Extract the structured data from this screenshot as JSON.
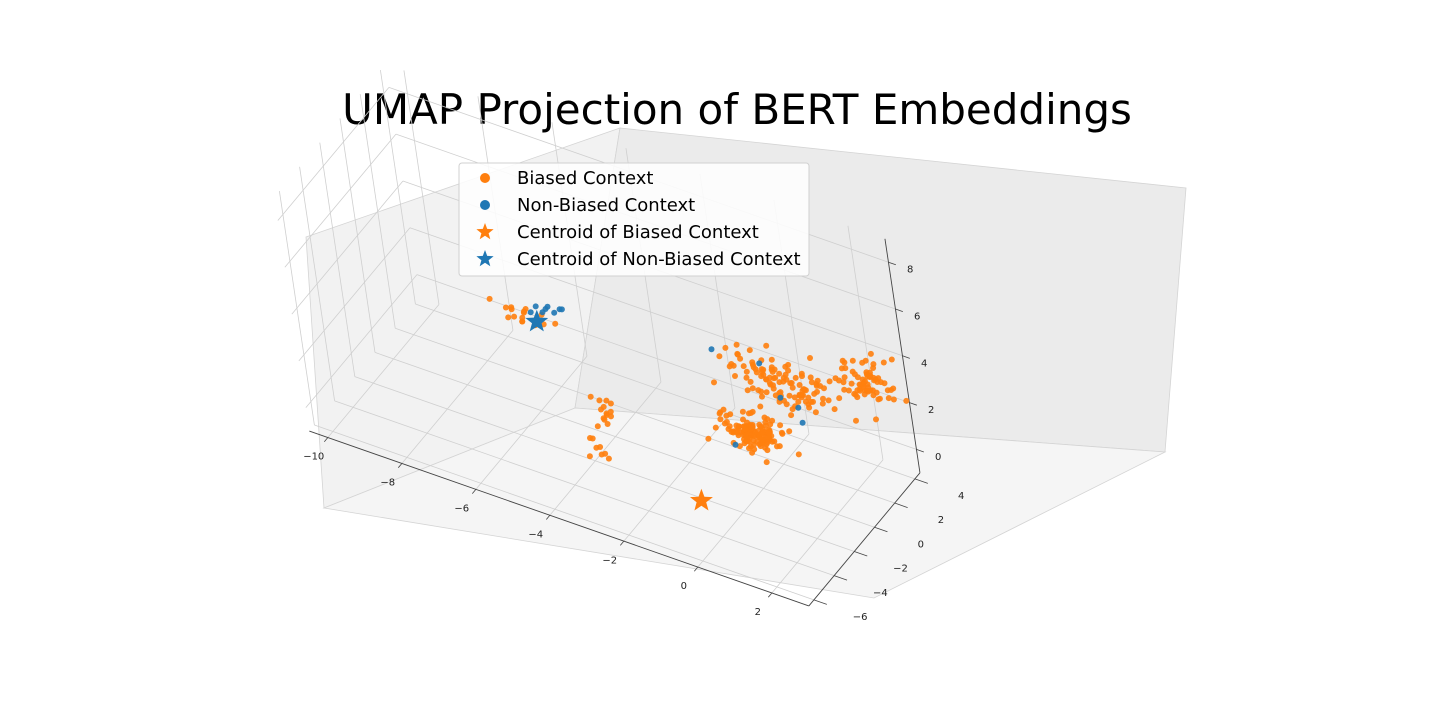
{
  "chart_data": {
    "type": "scatter",
    "projection": "3d",
    "title": "UMAP Projection of BERT Embeddings",
    "xlabel": "",
    "ylabel": "",
    "zlabel": "",
    "xlim": [
      -10.5,
      3
    ],
    "ylim": [
      -6.5,
      4.5
    ],
    "zlim": [
      -1,
      9
    ],
    "x_ticks": [
      "−10",
      "−8",
      "−6",
      "−4",
      "−2",
      "0",
      "2"
    ],
    "y_ticks": [
      "−6",
      "−4",
      "−2",
      "0",
      "2",
      "4"
    ],
    "z_ticks": [
      "0",
      "2",
      "4",
      "6",
      "8"
    ],
    "grid": true,
    "legend_position": "upper-left",
    "legend": [
      {
        "label": "Biased Context",
        "marker": "circle",
        "color": "#ff7f0e"
      },
      {
        "label": "Non-Biased Context",
        "marker": "circle",
        "color": "#1f77b4"
      },
      {
        "label": "Centroid of Biased Context",
        "marker": "star",
        "color": "#ff7f0e"
      },
      {
        "label": "Centroid of Non-Biased Context",
        "marker": "star",
        "color": "#1f77b4"
      }
    ],
    "series": [
      {
        "name": "Biased Context",
        "color": "#ff7f0e",
        "marker": "circle",
        "clusters": [
          {
            "center": [
              0.5,
              1.2,
              3.2
            ],
            "spread": [
              1.6,
              0.9,
              0.9
            ],
            "count": 110
          },
          {
            "center": [
              2.2,
              3.6,
              2.8
            ],
            "spread": [
              0.8,
              0.7,
              0.9
            ],
            "count": 70
          },
          {
            "center": [
              0.3,
              -1.2,
              2.2
            ],
            "spread": [
              0.8,
              0.8,
              0.6
            ],
            "count": 130
          },
          {
            "center": [
              -6.6,
              1.6,
              1.9
            ],
            "spread": [
              0.7,
              0.3,
              0.4
            ],
            "count": 18
          },
          {
            "center": [
              -3.1,
              -3.2,
              2.3
            ],
            "spread": [
              0.3,
              0.4,
              0.6
            ],
            "count": 14
          },
          {
            "center": [
              -3.3,
              -3.6,
              0.8
            ],
            "spread": [
              0.3,
              0.3,
              0.3
            ],
            "count": 8
          }
        ]
      },
      {
        "name": "Non-Biased Context",
        "color": "#1f77b4",
        "marker": "circle",
        "points": [
          [
            -6.2,
            2.2,
            2.1
          ],
          [
            -6.0,
            2.3,
            2.0
          ],
          [
            -6.4,
            2.0,
            2.2
          ],
          [
            -5.9,
            2.5,
            2.1
          ],
          [
            -6.5,
            1.8,
            2.0
          ],
          [
            -6.1,
            2.1,
            2.3
          ],
          [
            -5.8,
            2.4,
            2.2
          ],
          [
            -6.3,
            2.2,
            1.9
          ],
          [
            -0.2,
            1.8,
            3.3
          ],
          [
            0.7,
            0.5,
            3.0
          ],
          [
            1.6,
            -0.6,
            3.0
          ],
          [
            0.0,
            -1.8,
            1.8
          ],
          [
            1.2,
            0.4,
            2.9
          ],
          [
            -1.4,
            1.5,
            3.4
          ]
        ]
      },
      {
        "name": "Centroid of Biased Context",
        "color": "#ff7f0e",
        "marker": "star",
        "points": [
          [
            -0.6,
            -3.6,
            0.0
          ]
        ]
      },
      {
        "name": "Centroid of Non-Biased Context",
        "color": "#1f77b4",
        "marker": "star",
        "points": [
          [
            -6.4,
            1.9,
            1.6
          ]
        ]
      }
    ]
  }
}
